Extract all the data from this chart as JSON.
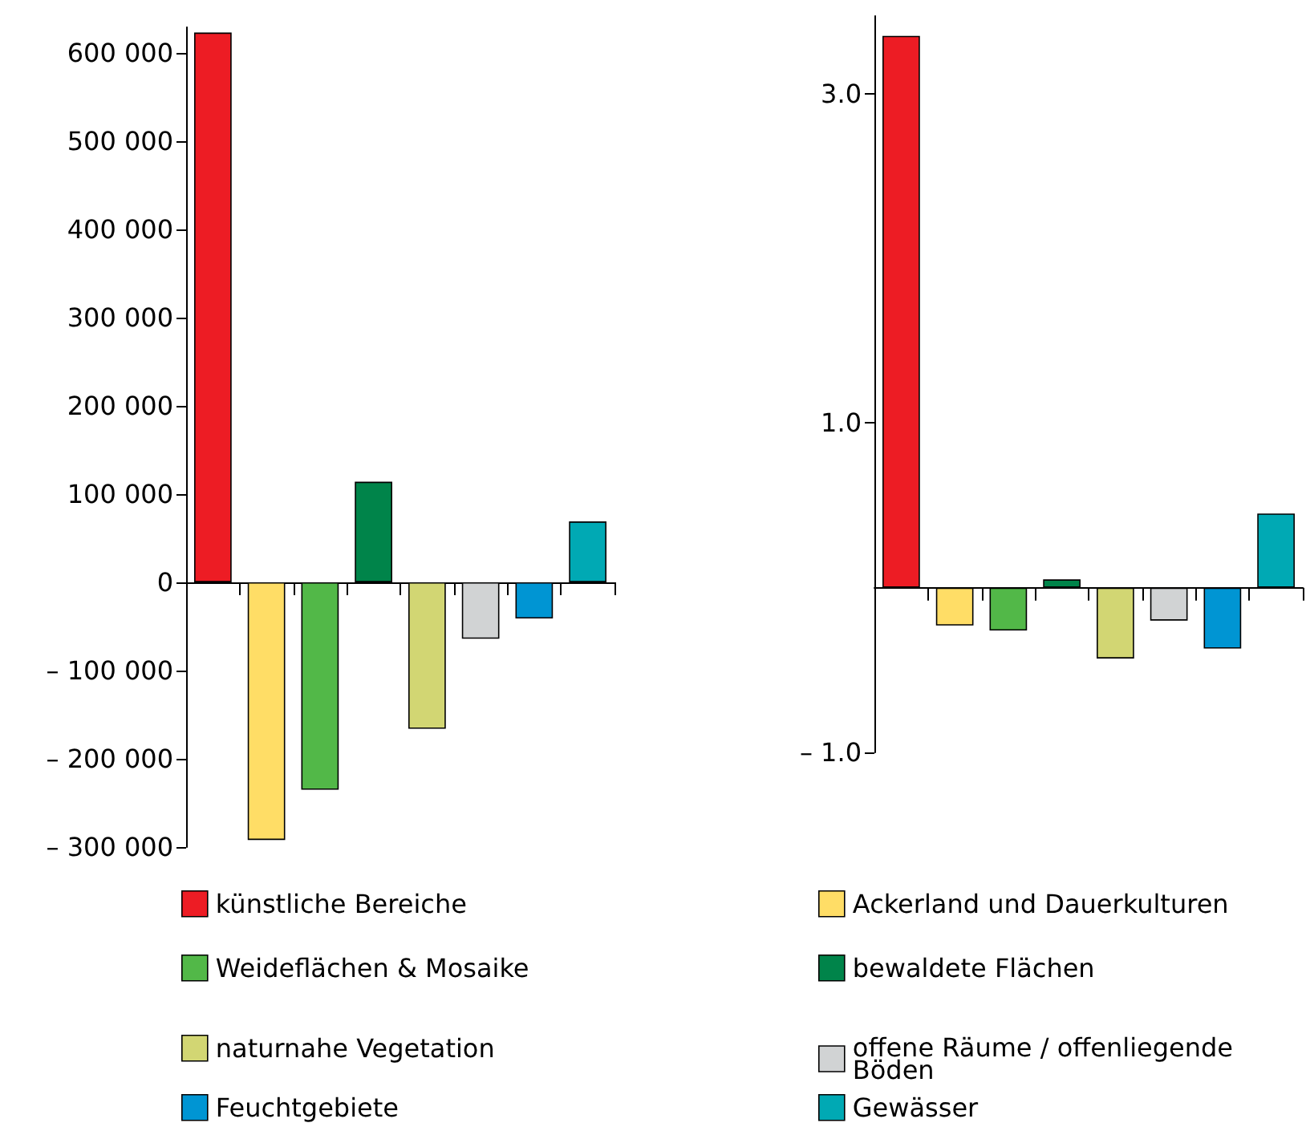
{
  "chart_data": [
    {
      "type": "bar",
      "categories": [
        null,
        null,
        null,
        null,
        null,
        null,
        null,
        null
      ],
      "series": [
        {
          "name": "künstliche Bereiche",
          "color": "#ed1c24",
          "values": [
            623000,
            null,
            null,
            null,
            null,
            null,
            null,
            null
          ]
        },
        {
          "name": "Ackerland und Dauerkulturen",
          "color": "#ffdd66",
          "values": [
            null,
            -292000,
            null,
            null,
            null,
            null,
            null,
            null
          ]
        },
        {
          "name": "Weideflächen & Mosaike",
          "color": "#52b848",
          "values": [
            null,
            null,
            -235000,
            null,
            null,
            null,
            null,
            null
          ]
        },
        {
          "name": "bewaldete Flächen",
          "color": "#00844a",
          "values": [
            null,
            null,
            null,
            114000,
            null,
            null,
            null,
            null
          ]
        },
        {
          "name": "naturnahe Vegetation",
          "color": "#d2d673",
          "values": [
            null,
            null,
            null,
            null,
            -166000,
            null,
            null,
            null
          ]
        },
        {
          "name": "offene Räume / offenliegende Böden",
          "color": "#d1d3d4",
          "values": [
            null,
            null,
            null,
            null,
            null,
            -64000,
            null,
            null
          ]
        },
        {
          "name": "Feuchtgebiete",
          "color": "#0095d3",
          "values": [
            null,
            null,
            null,
            null,
            null,
            null,
            -41000,
            null
          ]
        },
        {
          "name": "Gewässer",
          "color": "#00a9b4",
          "values": [
            null,
            null,
            null,
            null,
            null,
            null,
            null,
            69000
          ]
        }
      ],
      "ylim": [
        -300000,
        629000
      ],
      "yticks": [
        {
          "value": -300000,
          "label": "– 300 000"
        },
        {
          "value": -200000,
          "label": "– 200 000"
        },
        {
          "value": -100000,
          "label": "– 100 000"
        },
        0,
        {
          "value": 100000,
          "label": "100 000"
        },
        {
          "value": 200000,
          "label": "200 000"
        },
        {
          "value": 300000,
          "label": "300 000"
        },
        {
          "value": 400000,
          "label": "400 000"
        },
        {
          "value": 500000,
          "label": "500 000"
        },
        {
          "value": 600000,
          "label": "600 000"
        }
      ],
      "tick_labels": "y",
      "legend": "bottom"
    },
    {
      "type": "bar",
      "categories": [
        null,
        null,
        null,
        null,
        null,
        null,
        null,
        null
      ],
      "series": [
        {
          "color": "#ed1c24",
          "values": [
            3.35,
            null,
            null,
            null,
            null,
            null,
            null,
            null
          ]
        },
        {
          "color": "#ffdd66",
          "values": [
            null,
            -0.23,
            null,
            null,
            null,
            null,
            null,
            null
          ]
        },
        {
          "color": "#52b848",
          "values": [
            null,
            null,
            -0.26,
            null,
            null,
            null,
            null,
            null
          ]
        },
        {
          "color": "#00844a",
          "values": [
            null,
            null,
            null,
            0.05,
            null,
            null,
            null,
            null
          ]
        },
        {
          "color": "#d2d673",
          "values": [
            null,
            null,
            null,
            null,
            -0.43,
            null,
            null,
            null
          ]
        },
        {
          "color": "#d1d3d4",
          "values": [
            null,
            null,
            null,
            null,
            null,
            -0.2,
            null,
            null
          ]
        },
        {
          "color": "#0095d3",
          "values": [
            null,
            null,
            null,
            null,
            null,
            null,
            -0.37,
            null
          ]
        },
        {
          "color": "#00a9b4",
          "values": [
            null,
            null,
            null,
            null,
            null,
            null,
            null,
            0.45
          ]
        }
      ],
      "ylim": [
        -1.0,
        3.47
      ],
      "yticks": [
        {
          "value": -1,
          "label": "– 1.0"
        },
        {
          "value": 1,
          "label": "1.0"
        },
        {
          "value": 3,
          "label": "3.0"
        }
      ],
      "tick_labels": "y"
    }
  ]
}
